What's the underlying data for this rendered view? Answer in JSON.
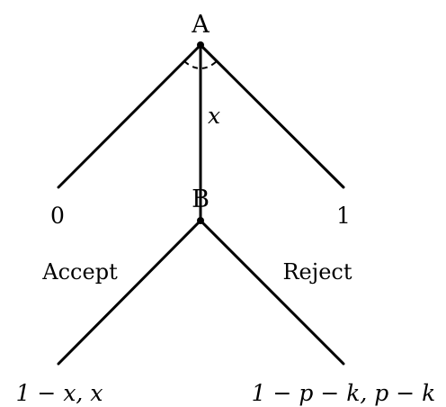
{
  "diagram": {
    "title": "",
    "nodes": [
      {
        "id": "A",
        "label": "A"
      },
      {
        "id": "B",
        "label": "B"
      }
    ],
    "edges": [
      {
        "from": "A",
        "to": "payoff_left"
      },
      {
        "from": "A",
        "to": "B",
        "label": "x"
      },
      {
        "from": "A",
        "to": "payoff_right"
      },
      {
        "from": "B",
        "to": "payoff_accept",
        "label": "Accept"
      },
      {
        "from": "B",
        "to": "payoff_reject",
        "label": "Reject"
      }
    ],
    "labels": {
      "node_a": "A",
      "node_b": "B",
      "offer_x": "x",
      "left_terminal": "0",
      "right_terminal": "1",
      "accept": "Accept",
      "reject": "Reject",
      "accept_payoff": "1 − x, x",
      "reject_payoff": "1 − p − k, p − k"
    }
  }
}
